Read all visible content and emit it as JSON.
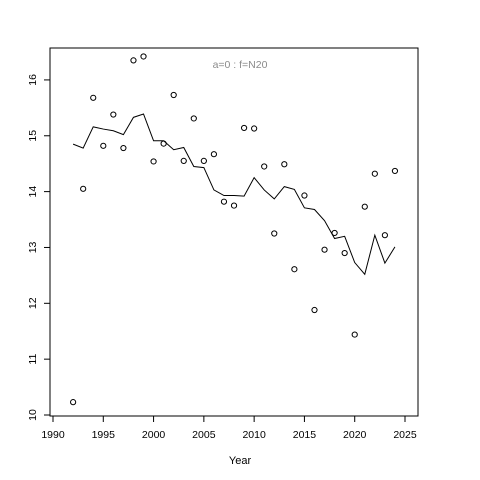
{
  "chart_data": {
    "type": "scatter",
    "annotation": "a=0  :  f=N20",
    "xlabel": "Year",
    "ylabel": "",
    "xlim": [
      1990,
      2025
    ],
    "ylim": [
      10,
      16.5
    ],
    "xticks": [
      1990,
      1995,
      2000,
      2005,
      2010,
      2015,
      2020,
      2025
    ],
    "yticks": [
      10,
      11,
      12,
      13,
      14,
      15,
      16
    ],
    "grid": false,
    "colors": {
      "points": "#000000",
      "line": "#000000",
      "annotation": "#8a8a8a"
    },
    "series": [
      {
        "kind": "points",
        "x": [
          1992,
          1993,
          1994,
          1995,
          1996,
          1997,
          1998,
          1999,
          2000,
          2001,
          2002,
          2003,
          2004,
          2005,
          2006,
          2007,
          2008,
          2009,
          2010,
          2011,
          2012,
          2013,
          2014,
          2015,
          2016,
          2017,
          2018,
          2019,
          2020,
          2021,
          2022,
          2023,
          2024
        ],
        "y": [
          10.23,
          14.05,
          15.68,
          14.82,
          15.38,
          14.78,
          16.35,
          16.42,
          14.54,
          14.86,
          15.73,
          14.55,
          15.31,
          14.55,
          14.67,
          13.82,
          13.75,
          15.14,
          15.13,
          14.45,
          13.25,
          14.49,
          12.61,
          13.93,
          11.88,
          12.96,
          13.26,
          12.9,
          11.44,
          13.73,
          14.32,
          13.22,
          14.37
        ]
      },
      {
        "kind": "line",
        "x": [
          1992,
          1993,
          1994,
          1995,
          1996,
          1997,
          1998,
          1999,
          2000,
          2001,
          2002,
          2003,
          2004,
          2005,
          2006,
          2007,
          2008,
          2009,
          2010,
          2011,
          2012,
          2013,
          2014,
          2015,
          2016,
          2017,
          2018,
          2019,
          2020,
          2021,
          2022,
          2023,
          2024
        ],
        "y": [
          14.85,
          14.78,
          15.16,
          15.12,
          15.09,
          15.02,
          15.33,
          15.39,
          14.91,
          14.91,
          14.75,
          14.79,
          14.45,
          14.43,
          14.03,
          13.93,
          13.93,
          13.92,
          14.25,
          14.03,
          13.87,
          14.09,
          14.04,
          13.71,
          13.68,
          13.48,
          13.16,
          13.2,
          12.73,
          12.52,
          13.22,
          12.72,
          13.01
        ]
      }
    ]
  }
}
